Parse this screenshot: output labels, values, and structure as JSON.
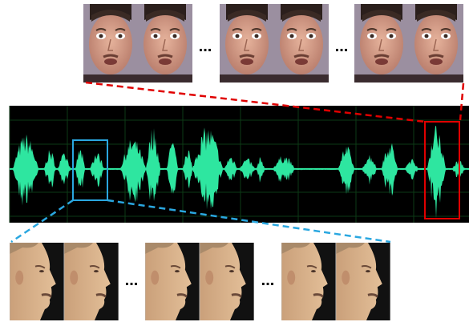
{
  "top_row": {
    "separators": [
      "...",
      "..."
    ]
  },
  "bottom_row": {
    "separators": [
      "...",
      "..."
    ]
  }
}
